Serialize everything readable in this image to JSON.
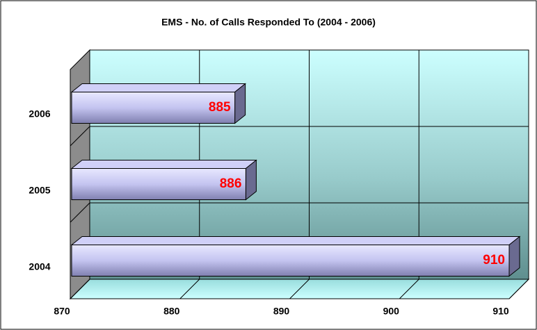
{
  "chart_data": {
    "type": "bar",
    "orientation": "horizontal",
    "title": "EMS - No. of Calls Responded To (2004 - 2006)",
    "categories": [
      "2004",
      "2005",
      "2006"
    ],
    "values": [
      910,
      886,
      885
    ],
    "color": "#b8b8ee",
    "value_label_color": "#ff0000",
    "xlim": [
      870,
      910
    ],
    "xticks": [
      870,
      880,
      890,
      900,
      910
    ],
    "grid": true
  }
}
